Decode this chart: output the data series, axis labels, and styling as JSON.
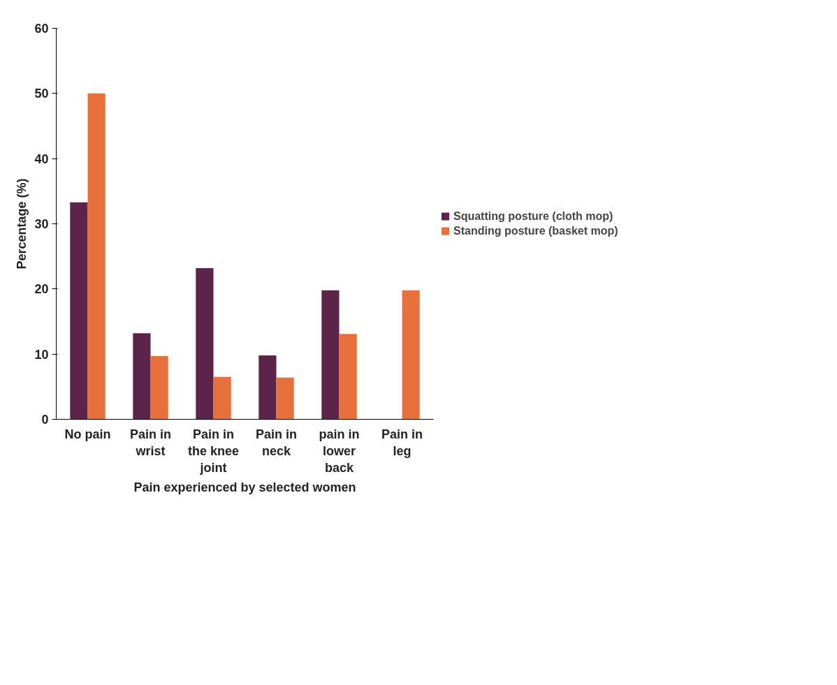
{
  "chart_data": {
    "type": "bar",
    "xlabel": "Pain experienced by selected women",
    "ylabel": "Percentage (%)",
    "categories": [
      "No pain",
      "Pain in wrist",
      "Pain in the knee joint",
      "Pain in neck",
      "pain in lower back",
      "Pain in leg"
    ],
    "series": [
      {
        "name": "Squatting posture (cloth mop)",
        "color": "#5c2448",
        "values": [
          33.3,
          13.2,
          23.2,
          9.8,
          19.8,
          0
        ]
      },
      {
        "name": "Standing posture (basket mop)",
        "color": "#e8703c",
        "values": [
          50,
          9.7,
          6.5,
          6.4,
          13.1,
          19.8
        ]
      }
    ],
    "ylim": [
      0,
      60
    ],
    "yticks": [
      0,
      10,
      20,
      30,
      40,
      50,
      60
    ],
    "grid": false,
    "legend": "right"
  }
}
